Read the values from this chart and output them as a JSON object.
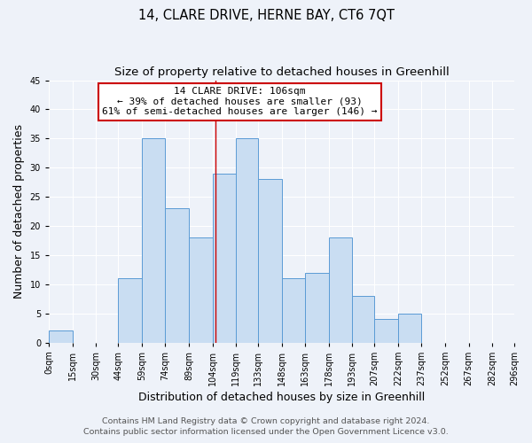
{
  "title": "14, CLARE DRIVE, HERNE BAY, CT6 7QT",
  "subtitle": "Size of property relative to detached houses in Greenhill",
  "xlabel": "Distribution of detached houses by size in Greenhill",
  "ylabel": "Number of detached properties",
  "bar_values": [
    2,
    0,
    0,
    11,
    35,
    23,
    18,
    29,
    35,
    28,
    11,
    12,
    18,
    8,
    4,
    5,
    0,
    0,
    0,
    0
  ],
  "bin_edges": [
    0,
    15,
    30,
    44,
    59,
    74,
    89,
    104,
    119,
    133,
    148,
    163,
    178,
    193,
    207,
    222,
    237,
    252,
    267,
    282,
    296
  ],
  "tick_labels": [
    "0sqm",
    "15sqm",
    "30sqm",
    "44sqm",
    "59sqm",
    "74sqm",
    "89sqm",
    "104sqm",
    "119sqm",
    "133sqm",
    "148sqm",
    "163sqm",
    "178sqm",
    "193sqm",
    "207sqm",
    "222sqm",
    "237sqm",
    "252sqm",
    "267sqm",
    "282sqm",
    "296sqm"
  ],
  "bar_color": "#c9ddf2",
  "bar_edge_color": "#5b9bd5",
  "vline_x": 106,
  "vline_color": "#cc0000",
  "annotation_title": "14 CLARE DRIVE: 106sqm",
  "annotation_line1": "← 39% of detached houses are smaller (93)",
  "annotation_line2": "61% of semi-detached houses are larger (146) →",
  "annotation_box_color": "#ffffff",
  "annotation_box_edge": "#cc0000",
  "ylim": [
    0,
    45
  ],
  "yticks": [
    0,
    5,
    10,
    15,
    20,
    25,
    30,
    35,
    40,
    45
  ],
  "footer1": "Contains HM Land Registry data © Crown copyright and database right 2024.",
  "footer2": "Contains public sector information licensed under the Open Government Licence v3.0.",
  "bg_color": "#eef2f9",
  "grid_color": "#ffffff",
  "title_fontsize": 10.5,
  "subtitle_fontsize": 9.5,
  "axis_label_fontsize": 9,
  "tick_fontsize": 7,
  "footer_fontsize": 6.8,
  "annotation_fontsize": 8
}
